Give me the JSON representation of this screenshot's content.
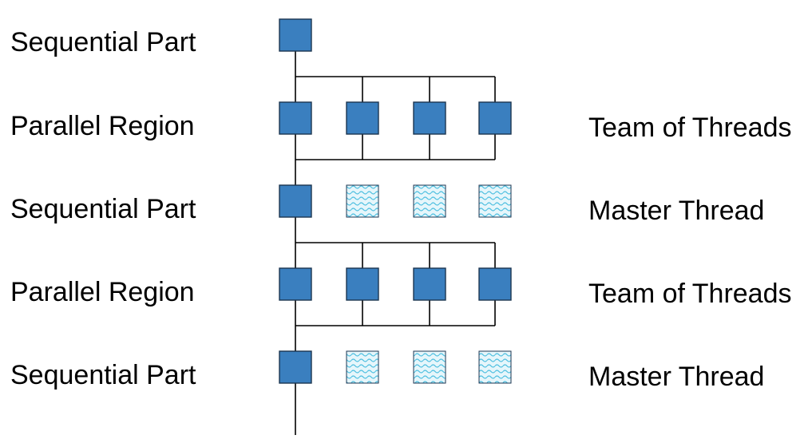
{
  "colors": {
    "active_fill": "#3a7fbf",
    "active_stroke": "#1c3550",
    "idle_fill": "#e6f6fb",
    "idle_wave": "#4dbfe0",
    "line": "#000000"
  },
  "rows": [
    {
      "left": "Sequential Part",
      "right": "",
      "kind": "sequential-start"
    },
    {
      "left": "Parallel Region",
      "right": "Team of Threads",
      "kind": "parallel"
    },
    {
      "left": "Sequential Part",
      "right": "Master Thread",
      "kind": "sequential"
    },
    {
      "left": "Parallel Region",
      "right": "Team of Threads",
      "kind": "parallel"
    },
    {
      "left": "Sequential Part",
      "right": "Master Thread",
      "kind": "sequential"
    }
  ]
}
